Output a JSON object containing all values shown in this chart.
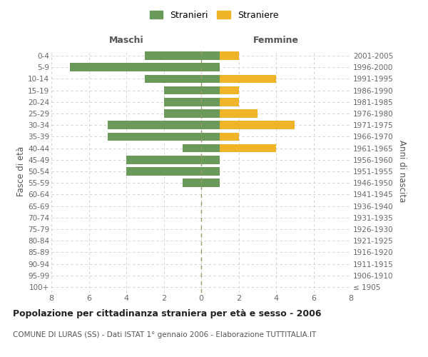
{
  "age_groups": [
    "100+",
    "95-99",
    "90-94",
    "85-89",
    "80-84",
    "75-79",
    "70-74",
    "65-69",
    "60-64",
    "55-59",
    "50-54",
    "45-49",
    "40-44",
    "35-39",
    "30-34",
    "25-29",
    "20-24",
    "15-19",
    "10-14",
    "5-9",
    "0-4"
  ],
  "birth_years": [
    "≤ 1905",
    "1906-1910",
    "1911-1915",
    "1916-1920",
    "1921-1925",
    "1926-1930",
    "1931-1935",
    "1936-1940",
    "1941-1945",
    "1946-1950",
    "1951-1955",
    "1956-1960",
    "1961-1965",
    "1966-1970",
    "1971-1975",
    "1976-1980",
    "1981-1985",
    "1986-1990",
    "1991-1995",
    "1996-2000",
    "2001-2005"
  ],
  "maschi": [
    0,
    0,
    0,
    0,
    0,
    0,
    0,
    0,
    0,
    1,
    4,
    4,
    1,
    5,
    5,
    2,
    2,
    2,
    3,
    7,
    3
  ],
  "femmine_straniere": [
    0,
    0,
    0,
    0,
    0,
    0,
    0,
    0,
    0,
    0,
    0,
    1,
    4,
    2,
    5,
    3,
    2,
    2,
    4,
    1,
    2
  ],
  "femmine_stranieri": [
    0,
    0,
    0,
    0,
    0,
    0,
    0,
    0,
    0,
    1,
    1,
    1,
    1,
    1,
    1,
    1,
    1,
    1,
    1,
    1,
    1
  ],
  "color_maschi": "#6a9a5a",
  "color_femmine": "#f0b429",
  "color_femmine_stranieri": "#6a9a5a",
  "title": "Popolazione per cittadinanza straniera per età e sesso - 2006",
  "subtitle": "COMUNE DI LURAS (SS) - Dati ISTAT 1° gennaio 2006 - Elaborazione TUTTITALIA.IT",
  "xlabel_left": "Maschi",
  "xlabel_right": "Femmine",
  "ylabel_left": "Fasce di età",
  "ylabel_right": "Anni di nascita",
  "legend_stranieri": "Stranieri",
  "legend_straniere": "Straniere",
  "xlim": 8,
  "background_color": "#ffffff",
  "grid_color": "#cccccc"
}
